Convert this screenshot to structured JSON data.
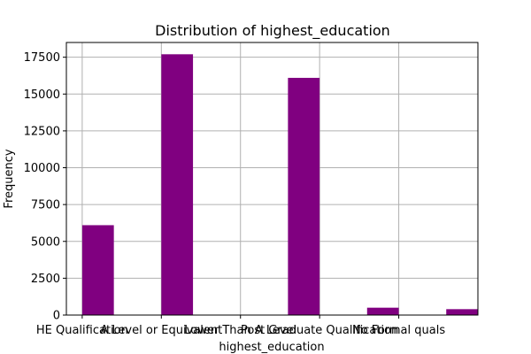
{
  "chart_data": {
    "type": "bar",
    "title": "Distribution of highest_education",
    "xlabel": "highest_education",
    "ylabel": "Frequency",
    "bar_color": "#800080",
    "grid": true,
    "legend": "none",
    "ylim": [
      0,
      18500
    ],
    "y_ticks": [
      {
        "value": 0,
        "label": "0"
      },
      {
        "value": 2500,
        "label": "2500"
      },
      {
        "value": 5000,
        "label": "5000"
      },
      {
        "value": 7500,
        "label": "7500"
      },
      {
        "value": 10000,
        "label": "10000"
      },
      {
        "value": 12500,
        "label": "12500"
      },
      {
        "value": 15000,
        "label": "15000"
      },
      {
        "value": 17500,
        "label": "17500"
      }
    ],
    "x_ticks": [
      {
        "value": 0,
        "label": "HE Qualification"
      },
      {
        "value": 1,
        "label": "A Level or Equivalent"
      },
      {
        "value": 2,
        "label": "Lower Than A Level"
      },
      {
        "value": 3,
        "label": "Post Graduate Qualification"
      },
      {
        "value": 4,
        "label": "No Formal quals"
      }
    ],
    "xlim": [
      -0.2,
      5.0
    ],
    "bars": [
      {
        "x_start": 0.0,
        "x_end": 0.4,
        "value": 6100
      },
      {
        "x_start": 1.0,
        "x_end": 1.4,
        "value": 17700
      },
      {
        "x_start": 2.6,
        "x_end": 3.0,
        "value": 16100
      },
      {
        "x_start": 3.6,
        "x_end": 4.0,
        "value": 500
      },
      {
        "x_start": 4.6,
        "x_end": 5.0,
        "value": 400
      }
    ]
  }
}
